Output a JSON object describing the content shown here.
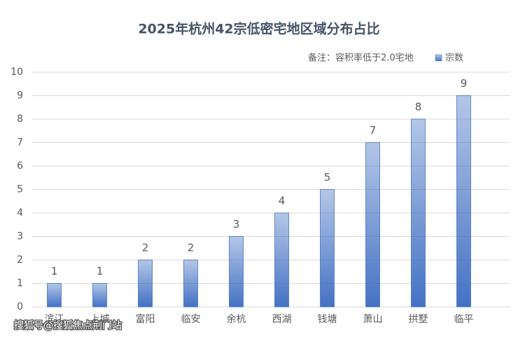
{
  "chart_data": {
    "type": "bar",
    "title": "2025年杭州42宗低密宅地区域分布占比",
    "note": "备注：容积率低于2.0宅地",
    "categories": [
      "滨江",
      "上城",
      "富阳",
      "临安",
      "余杭",
      "西湖",
      "钱塘",
      "萧山",
      "拱墅",
      "临平"
    ],
    "series": [
      {
        "name": "宗数",
        "color": "#4472c4",
        "values": [
          1,
          1,
          2,
          2,
          3,
          4,
          5,
          7,
          8,
          9
        ]
      }
    ],
    "ylim": [
      0,
      10
    ],
    "yticks": [
      0,
      1,
      2,
      3,
      4,
      5,
      6,
      7,
      8,
      9,
      10
    ],
    "grid": true
  },
  "watermark": "搜狐号@搜狐焦点荆门站"
}
